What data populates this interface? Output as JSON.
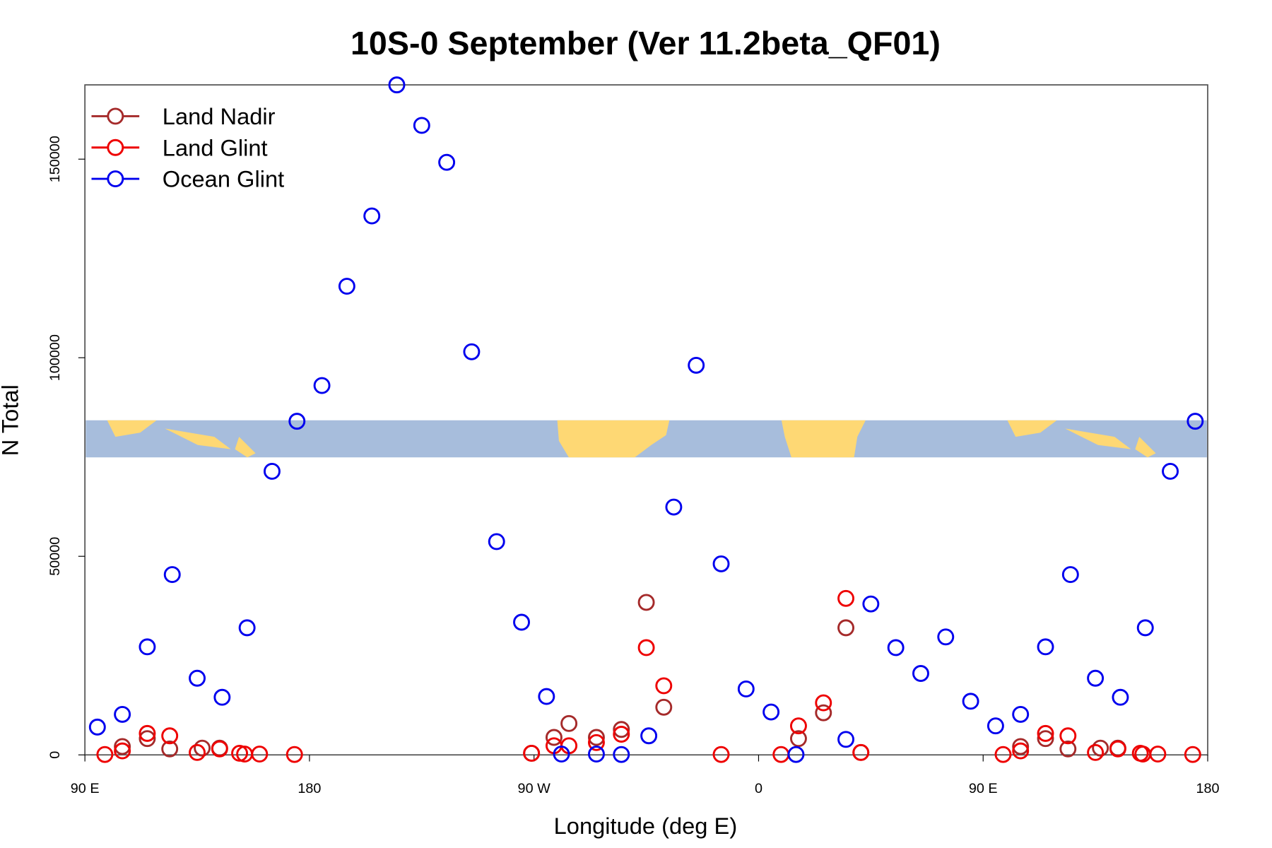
{
  "chart_data": {
    "type": "scatter",
    "title": "10S-0 September (Ver 11.2beta_QF01)",
    "x_label": "Longitude (deg E)",
    "y_label": "N Total",
    "xlim": [
      90,
      540
    ],
    "ylim": [
      0,
      168700
    ],
    "xticks": [
      {
        "value": 90,
        "label": "90 E"
      },
      {
        "value": 180,
        "label": "180"
      },
      {
        "value": 270,
        "label": "90 W"
      },
      {
        "value": 360,
        "label": "0"
      },
      {
        "value": 450,
        "label": "90 E"
      },
      {
        "value": 540,
        "label": "180"
      }
    ],
    "yticks": [
      0,
      50000,
      100000,
      150000
    ],
    "legend": "top-left",
    "series": [
      {
        "name": "Land Nadir",
        "color": "#a52a2a",
        "x": [
          105,
          115,
          124,
          137,
          144,
          269,
          278,
          284,
          295,
          305,
          315,
          322,
          376,
          386,
          395,
          401,
          465,
          475,
          484,
          497,
          504
        ],
        "values": [
          2100,
          4100,
          1500,
          1700,
          1700,
          400,
          4400,
          7900,
          4400,
          6400,
          38400,
          12000,
          4100,
          10600,
          32000,
          600,
          2100,
          4100,
          1500,
          1700,
          1700
        ]
      },
      {
        "name": "Land Glint",
        "color": "#ee0000",
        "x": [
          98,
          105,
          115,
          124,
          135,
          144,
          152,
          154,
          160,
          174,
          269,
          278,
          284,
          295,
          305,
          315,
          322,
          345,
          369,
          376,
          386,
          395,
          401,
          458,
          465,
          475,
          484,
          495,
          504,
          513,
          514,
          520,
          534
        ],
        "values": [
          100,
          1000,
          5400,
          4800,
          600,
          1500,
          400,
          200,
          200,
          100,
          400,
          2300,
          2300,
          3100,
          5200,
          27000,
          17400,
          100,
          100,
          7300,
          13100,
          39400,
          600,
          100,
          1000,
          5400,
          4800,
          600,
          1500,
          400,
          200,
          200,
          100
        ]
      },
      {
        "name": "Ocean Glint",
        "color": "#0000ee",
        "x": [
          95,
          105,
          115,
          125,
          135,
          145,
          155,
          165,
          175,
          185,
          195,
          205,
          215,
          225,
          235,
          245,
          255,
          265,
          275,
          281,
          295,
          305,
          316,
          326,
          335,
          345,
          355,
          365,
          375,
          395,
          405,
          415,
          425,
          435,
          445,
          455,
          465,
          475,
          485,
          495,
          505,
          515,
          525,
          535
        ],
        "values": [
          7000,
          10200,
          27200,
          45400,
          19300,
          14500,
          32000,
          71400,
          84000,
          93000,
          118000,
          135700,
          168700,
          158500,
          149200,
          101500,
          53700,
          33400,
          14700,
          200,
          200,
          100,
          4800,
          62400,
          98100,
          48100,
          16600,
          10800,
          100,
          3900,
          38000,
          27000,
          20500,
          29700,
          13500,
          7300,
          10200,
          27200,
          45400,
          19300,
          14500,
          32000,
          71400,
          84000
        ]
      }
    ]
  }
}
